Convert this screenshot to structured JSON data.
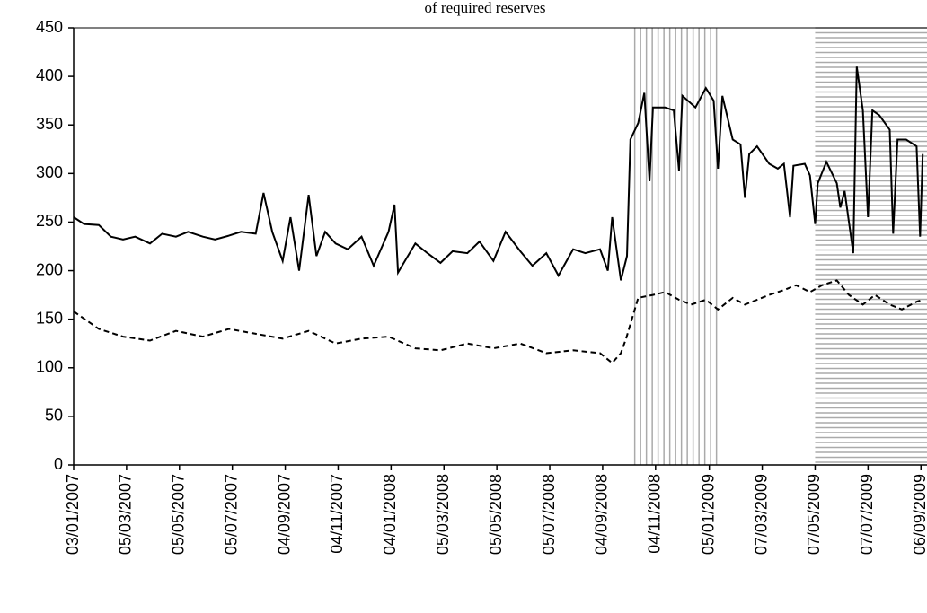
{
  "chart_data": {
    "type": "line",
    "title": "of required reserves",
    "xlim": [
      "03/01/2007",
      "13/09/2009"
    ],
    "xticks": [
      "03/01/2007",
      "05/03/2007",
      "05/05/2007",
      "05/07/2007",
      "04/09/2007",
      "04/11/2007",
      "04/01/2008",
      "05/03/2008",
      "05/05/2008",
      "05/07/2008",
      "04/09/2008",
      "04/11/2008",
      "05/01/2009",
      "07/03/2009",
      "07/05/2009",
      "07/07/2009",
      "06/09/2009"
    ],
    "ylim": [
      0,
      450
    ],
    "yticks": [
      0,
      50,
      100,
      150,
      200,
      250,
      300,
      350,
      400,
      450
    ],
    "shaded_periods": [
      {
        "start": "11/10/2008",
        "end": "17/01/2009",
        "hatch": "vertical",
        "color": "#aaaaaa"
      },
      {
        "start": "07/05/2009",
        "end": "13/09/2009",
        "hatch": "horizontal",
        "color": "#aaaaaa"
      }
    ],
    "series": [
      {
        "style": "solid",
        "color": "#000000",
        "x": [
          "03/01/2007",
          "15/01/2007",
          "01/02/2007",
          "15/02/2007",
          "01/03/2007",
          "15/03/2007",
          "01/04/2007",
          "15/04/2007",
          "01/05/2007",
          "15/05/2007",
          "01/06/2007",
          "15/06/2007",
          "01/07/2007",
          "15/07/2007",
          "01/08/2007",
          "10/08/2007",
          "20/08/2007",
          "01/09/2007",
          "10/09/2007",
          "20/09/2007",
          "01/10/2007",
          "10/10/2007",
          "20/10/2007",
          "01/11/2007",
          "15/11/2007",
          "01/12/2007",
          "15/12/2007",
          "01/01/2008",
          "08/01/2008",
          "12/01/2008",
          "01/02/2008",
          "15/02/2008",
          "01/03/2008",
          "15/03/2008",
          "01/04/2008",
          "15/04/2008",
          "01/05/2008",
          "15/05/2008",
          "01/06/2008",
          "15/06/2008",
          "01/07/2008",
          "15/07/2008",
          "01/08/2008",
          "15/08/2008",
          "01/09/2008",
          "10/09/2008",
          "15/09/2008",
          "25/09/2008",
          "02/10/2008",
          "06/10/2008",
          "15/10/2008",
          "22/10/2008",
          "28/10/2008",
          "01/11/2008",
          "15/11/2008",
          "25/11/2008",
          "01/12/2008",
          "05/12/2008",
          "20/12/2008",
          "01/01/2009",
          "10/01/2009",
          "15/01/2009",
          "20/01/2009",
          "01/02/2009",
          "10/02/2009",
          "15/02/2009",
          "20/02/2009",
          "01/03/2009",
          "15/03/2009",
          "25/03/2009",
          "01/04/2009",
          "08/04/2009",
          "12/04/2009",
          "25/04/2009",
          "01/05/2009",
          "07/05/2009",
          "10/05/2009",
          "20/05/2009",
          "01/06/2009",
          "05/06/2009",
          "10/06/2009",
          "20/06/2009",
          "24/06/2009",
          "01/07/2009",
          "07/07/2009",
          "12/07/2009",
          "20/07/2009",
          "01/08/2009",
          "05/08/2009",
          "10/08/2009",
          "20/08/2009",
          "01/09/2009",
          "05/09/2009",
          "08/09/2009"
        ],
        "values": [
          255,
          248,
          247,
          235,
          232,
          235,
          228,
          238,
          235,
          240,
          235,
          232,
          236,
          240,
          238,
          280,
          240,
          210,
          255,
          200,
          278,
          215,
          240,
          228,
          222,
          235,
          205,
          240,
          268,
          198,
          228,
          218,
          208,
          220,
          218,
          230,
          210,
          240,
          220,
          205,
          218,
          195,
          222,
          218,
          222,
          200,
          255,
          190,
          215,
          335,
          352,
          383,
          292,
          368,
          368,
          365,
          303,
          380,
          368,
          388,
          375,
          305,
          380,
          335,
          330,
          275,
          320,
          328,
          310,
          305,
          310,
          255,
          308,
          310,
          298,
          248,
          290,
          312,
          290,
          265,
          282,
          218,
          410,
          365,
          255,
          365,
          360,
          345,
          238,
          335,
          335,
          328,
          235,
          320
        ]
      },
      {
        "style": "dashed",
        "color": "#000000",
        "x": [
          "03/01/2007",
          "01/02/2007",
          "01/03/2007",
          "01/04/2007",
          "01/05/2007",
          "01/06/2007",
          "01/07/2007",
          "01/08/2007",
          "01/09/2007",
          "01/10/2007",
          "01/11/2007",
          "01/12/2007",
          "01/01/2008",
          "01/02/2008",
          "01/03/2008",
          "01/04/2008",
          "01/05/2008",
          "01/06/2008",
          "01/07/2008",
          "01/08/2008",
          "01/09/2008",
          "15/09/2008",
          "25/09/2008",
          "01/10/2008",
          "15/10/2008",
          "01/11/2008",
          "15/11/2008",
          "01/12/2008",
          "15/12/2008",
          "01/01/2009",
          "15/01/2009",
          "01/02/2009",
          "15/02/2009",
          "01/03/2009",
          "15/03/2009",
          "01/04/2009",
          "15/04/2009",
          "01/05/2009",
          "15/05/2009",
          "01/06/2009",
          "15/06/2009",
          "01/07/2009",
          "15/07/2009",
          "01/08/2009",
          "15/08/2009",
          "01/09/2009",
          "08/09/2009"
        ],
        "values": [
          158,
          140,
          132,
          128,
          138,
          132,
          140,
          135,
          130,
          138,
          125,
          130,
          132,
          120,
          118,
          125,
          120,
          125,
          115,
          118,
          115,
          105,
          115,
          130,
          172,
          175,
          178,
          170,
          165,
          170,
          160,
          172,
          165,
          170,
          175,
          180,
          185,
          178,
          185,
          190,
          175,
          165,
          175,
          165,
          160,
          168,
          170
        ]
      }
    ]
  }
}
